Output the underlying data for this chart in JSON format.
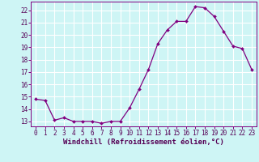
{
  "x": [
    0,
    1,
    2,
    3,
    4,
    5,
    6,
    7,
    8,
    9,
    10,
    11,
    12,
    13,
    14,
    15,
    16,
    17,
    18,
    19,
    20,
    21,
    22,
    23
  ],
  "y": [
    14.8,
    14.7,
    13.1,
    13.3,
    13.0,
    13.0,
    13.0,
    12.85,
    13.0,
    13.0,
    14.1,
    15.6,
    17.2,
    19.3,
    20.4,
    21.1,
    21.1,
    22.3,
    22.2,
    21.5,
    20.3,
    19.1,
    18.9,
    17.2
  ],
  "line_color": "#800080",
  "marker_color": "#800080",
  "bg_color": "#cef5f5",
  "grid_color": "#ffffff",
  "xlabel": "Windchill (Refroidissement éolien,°C)",
  "xlim": [
    -0.5,
    23.5
  ],
  "ylim": [
    12.6,
    22.7
  ],
  "xticks": [
    0,
    1,
    2,
    3,
    4,
    5,
    6,
    7,
    8,
    9,
    10,
    11,
    12,
    13,
    14,
    15,
    16,
    17,
    18,
    19,
    20,
    21,
    22,
    23
  ],
  "yticks": [
    13,
    14,
    15,
    16,
    17,
    18,
    19,
    20,
    21,
    22
  ],
  "tick_fontsize": 5.5,
  "xlabel_fontsize": 6.5,
  "line_width": 0.9,
  "marker_size": 2.0
}
